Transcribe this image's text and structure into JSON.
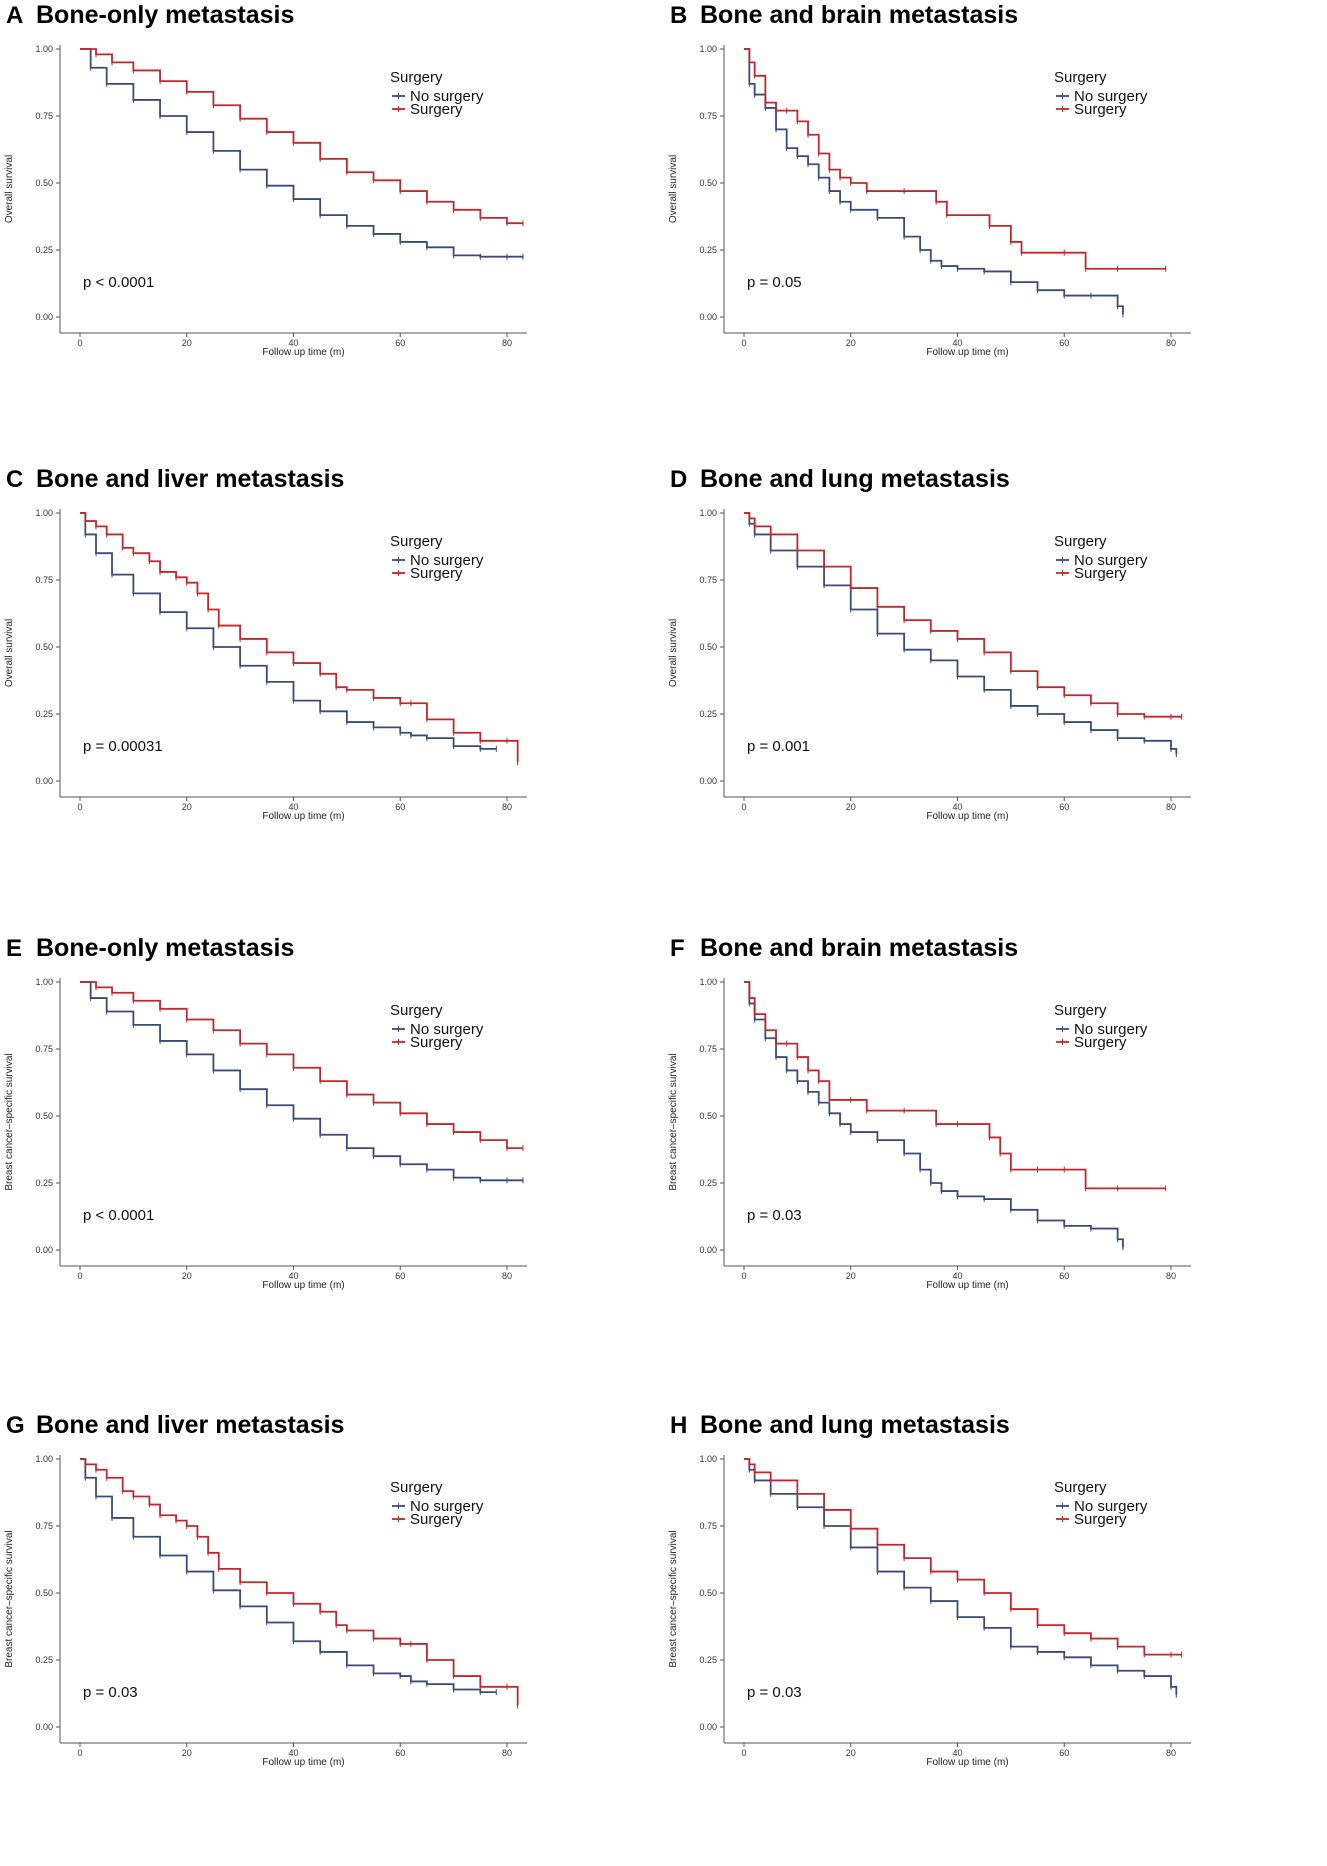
{
  "colors": {
    "no_surgery": "#3b4a7a",
    "surgery": "#c0282d",
    "axis": "#555555"
  },
  "chart_data": [
    {
      "type": "line",
      "letter": "A",
      "title": "Bone-only metastasis",
      "xlabel": "Follow up time (m)",
      "ylabel": "Overall survival",
      "xlim": [
        0,
        83
      ],
      "ylim": [
        0,
        1
      ],
      "xticks": [
        "0",
        "20",
        "40",
        "60",
        "80"
      ],
      "yticks": [
        "0.00",
        "0.25",
        "0.50",
        "0.75",
        "1.00"
      ],
      "legend_title": "Surgery",
      "pvalue": "p < 0.0001",
      "series": [
        {
          "name": "No surgery",
          "x": [
            0,
            2,
            5,
            10,
            15,
            20,
            25,
            30,
            35,
            40,
            45,
            50,
            55,
            60,
            65,
            70,
            75,
            80,
            83
          ],
          "values": [
            1.0,
            0.93,
            0.87,
            0.81,
            0.75,
            0.69,
            0.62,
            0.55,
            0.49,
            0.44,
            0.38,
            0.34,
            0.31,
            0.28,
            0.26,
            0.23,
            0.225,
            0.225,
            0.225
          ]
        },
        {
          "name": "Surgery",
          "x": [
            0,
            3,
            6,
            10,
            15,
            20,
            25,
            30,
            35,
            40,
            45,
            50,
            55,
            60,
            65,
            70,
            75,
            80,
            83
          ],
          "values": [
            1.0,
            0.98,
            0.95,
            0.92,
            0.88,
            0.84,
            0.79,
            0.74,
            0.69,
            0.65,
            0.59,
            0.54,
            0.51,
            0.47,
            0.43,
            0.4,
            0.37,
            0.35,
            0.35
          ]
        }
      ]
    },
    {
      "type": "line",
      "letter": "B",
      "title": "Bone and brain metastasis",
      "xlabel": "Follow up time (m)",
      "ylabel": "Overall survival",
      "xlim": [
        0,
        80
      ],
      "ylim": [
        0,
        1
      ],
      "xticks": [
        "0",
        "20",
        "40",
        "60",
        "80"
      ],
      "yticks": [
        "0.00",
        "0.25",
        "0.50",
        "0.75",
        "1.00"
      ],
      "legend_title": "Surgery",
      "pvalue": "p = 0.05",
      "series": [
        {
          "name": "No surgery",
          "x": [
            0,
            1,
            2,
            4,
            6,
            8,
            10,
            12,
            14,
            16,
            18,
            20,
            25,
            30,
            33,
            35,
            37,
            40,
            45,
            50,
            55,
            60,
            65,
            70,
            71
          ],
          "values": [
            1.0,
            0.87,
            0.83,
            0.78,
            0.7,
            0.63,
            0.6,
            0.57,
            0.52,
            0.47,
            0.43,
            0.4,
            0.37,
            0.3,
            0.25,
            0.21,
            0.19,
            0.18,
            0.17,
            0.13,
            0.1,
            0.08,
            0.08,
            0.04,
            0.01
          ]
        },
        {
          "name": "Surgery",
          "x": [
            0,
            1,
            2,
            4,
            6,
            8,
            10,
            12,
            14,
            16,
            18,
            20,
            23,
            30,
            36,
            38,
            46,
            50,
            52,
            60,
            64,
            70,
            79
          ],
          "values": [
            1.0,
            0.95,
            0.9,
            0.8,
            0.77,
            0.77,
            0.73,
            0.68,
            0.61,
            0.55,
            0.52,
            0.5,
            0.47,
            0.47,
            0.43,
            0.38,
            0.34,
            0.28,
            0.24,
            0.24,
            0.18,
            0.18,
            0.18
          ]
        }
      ]
    },
    {
      "type": "line",
      "letter": "C",
      "title": "Bone and liver metastasis",
      "xlabel": "Follow up time (m)",
      "ylabel": "Overall survival",
      "xlim": [
        0,
        83
      ],
      "ylim": [
        0,
        1
      ],
      "xticks": [
        "0",
        "20",
        "40",
        "60",
        "80"
      ],
      "yticks": [
        "0.00",
        "0.25",
        "0.50",
        "0.75",
        "1.00"
      ],
      "legend_title": "Surgery",
      "pvalue": "p = 0.00031",
      "series": [
        {
          "name": "No surgery",
          "x": [
            0,
            1,
            3,
            6,
            10,
            15,
            20,
            25,
            30,
            35,
            40,
            45,
            50,
            55,
            60,
            62,
            65,
            70,
            75,
            78
          ],
          "values": [
            1.0,
            0.92,
            0.85,
            0.77,
            0.7,
            0.63,
            0.57,
            0.5,
            0.43,
            0.37,
            0.3,
            0.26,
            0.22,
            0.2,
            0.18,
            0.17,
            0.16,
            0.13,
            0.12,
            0.12
          ]
        },
        {
          "name": "Surgery",
          "x": [
            0,
            1,
            3,
            5,
            8,
            10,
            13,
            15,
            18,
            20,
            22,
            24,
            26,
            30,
            35,
            40,
            45,
            48,
            50,
            55,
            60,
            62,
            65,
            70,
            75,
            80,
            82
          ],
          "values": [
            1.0,
            0.97,
            0.95,
            0.92,
            0.87,
            0.85,
            0.82,
            0.78,
            0.76,
            0.74,
            0.7,
            0.64,
            0.58,
            0.53,
            0.48,
            0.44,
            0.4,
            0.35,
            0.34,
            0.31,
            0.29,
            0.29,
            0.23,
            0.18,
            0.15,
            0.15,
            0.07
          ]
        }
      ]
    },
    {
      "type": "line",
      "letter": "D",
      "title": "Bone and lung metastasis",
      "xlabel": "Follow up time (m)",
      "ylabel": "Overall survival",
      "xlim": [
        0,
        82
      ],
      "ylim": [
        0,
        1
      ],
      "xticks": [
        "0",
        "20",
        "40",
        "60",
        "80"
      ],
      "yticks": [
        "0.00",
        "0.25",
        "0.50",
        "0.75",
        "1.00"
      ],
      "legend_title": "Surgery",
      "pvalue": "p = 0.001",
      "series": [
        {
          "name": "No surgery",
          "x": [
            0,
            1,
            2,
            5,
            10,
            15,
            20,
            25,
            30,
            35,
            40,
            45,
            50,
            55,
            60,
            65,
            70,
            75,
            80,
            81
          ],
          "values": [
            1.0,
            0.96,
            0.92,
            0.86,
            0.8,
            0.73,
            0.64,
            0.55,
            0.49,
            0.45,
            0.39,
            0.34,
            0.28,
            0.25,
            0.22,
            0.19,
            0.16,
            0.15,
            0.12,
            0.1
          ]
        },
        {
          "name": "Surgery",
          "x": [
            0,
            1,
            2,
            5,
            10,
            15,
            20,
            25,
            30,
            35,
            40,
            45,
            50,
            55,
            60,
            65,
            70,
            75,
            80,
            82
          ],
          "values": [
            1.0,
            0.98,
            0.95,
            0.92,
            0.86,
            0.8,
            0.72,
            0.65,
            0.6,
            0.56,
            0.53,
            0.48,
            0.41,
            0.35,
            0.32,
            0.29,
            0.25,
            0.24,
            0.24,
            0.24
          ]
        }
      ]
    },
    {
      "type": "line",
      "letter": "E",
      "title": "Bone-only metastasis",
      "xlabel": "Follow up time (m)",
      "ylabel": "Breast cancer–specific survival",
      "xlim": [
        0,
        83
      ],
      "ylim": [
        0,
        1
      ],
      "xticks": [
        "0",
        "20",
        "40",
        "60",
        "80"
      ],
      "yticks": [
        "0.00",
        "0.25",
        "0.50",
        "0.75",
        "1.00"
      ],
      "legend_title": "Surgery",
      "pvalue": "p < 0.0001",
      "series": [
        {
          "name": "No surgery",
          "x": [
            0,
            2,
            5,
            10,
            15,
            20,
            25,
            30,
            35,
            40,
            45,
            50,
            55,
            60,
            65,
            70,
            75,
            80,
            83
          ],
          "values": [
            1.0,
            0.94,
            0.89,
            0.84,
            0.78,
            0.73,
            0.67,
            0.6,
            0.54,
            0.49,
            0.43,
            0.38,
            0.35,
            0.32,
            0.3,
            0.27,
            0.26,
            0.26,
            0.26
          ]
        },
        {
          "name": "Surgery",
          "x": [
            0,
            3,
            6,
            10,
            15,
            20,
            25,
            30,
            35,
            40,
            45,
            50,
            55,
            60,
            65,
            70,
            75,
            80,
            83
          ],
          "values": [
            1.0,
            0.98,
            0.96,
            0.93,
            0.9,
            0.86,
            0.82,
            0.77,
            0.73,
            0.68,
            0.63,
            0.58,
            0.55,
            0.51,
            0.47,
            0.44,
            0.41,
            0.38,
            0.38
          ]
        }
      ]
    },
    {
      "type": "line",
      "letter": "F",
      "title": "Bone and brain metastasis",
      "xlabel": "Follow up time (m)",
      "ylabel": "Breast cancer–specific survival",
      "xlim": [
        0,
        80
      ],
      "ylim": [
        0,
        1
      ],
      "xticks": [
        "0",
        "20",
        "40",
        "60",
        "80"
      ],
      "yticks": [
        "0.00",
        "0.25",
        "0.50",
        "0.75",
        "1.00"
      ],
      "legend_title": "Surgery",
      "pvalue": "p = 0.03",
      "series": [
        {
          "name": "No surgery",
          "x": [
            0,
            1,
            2,
            4,
            6,
            8,
            10,
            12,
            14,
            16,
            18,
            20,
            25,
            30,
            33,
            35,
            37,
            40,
            45,
            50,
            55,
            60,
            65,
            70,
            71
          ],
          "values": [
            1.0,
            0.92,
            0.86,
            0.79,
            0.72,
            0.67,
            0.63,
            0.59,
            0.55,
            0.51,
            0.47,
            0.44,
            0.41,
            0.36,
            0.3,
            0.25,
            0.22,
            0.2,
            0.19,
            0.15,
            0.11,
            0.09,
            0.08,
            0.04,
            0.01
          ]
        },
        {
          "name": "Surgery",
          "x": [
            0,
            1,
            2,
            4,
            6,
            8,
            10,
            12,
            14,
            16,
            20,
            23,
            30,
            36,
            40,
            46,
            48,
            50,
            55,
            60,
            64,
            70,
            79
          ],
          "values": [
            1.0,
            0.94,
            0.88,
            0.82,
            0.77,
            0.77,
            0.72,
            0.67,
            0.63,
            0.56,
            0.56,
            0.52,
            0.52,
            0.47,
            0.47,
            0.42,
            0.36,
            0.3,
            0.3,
            0.3,
            0.23,
            0.23,
            0.23
          ]
        }
      ]
    },
    {
      "type": "line",
      "letter": "G",
      "title": "Bone and liver metastasis",
      "xlabel": "Follow up time (m)",
      "ylabel": "Breast cancer–specific survival",
      "xlim": [
        0,
        83
      ],
      "ylim": [
        0,
        1
      ],
      "xticks": [
        "0",
        "20",
        "40",
        "60",
        "80"
      ],
      "yticks": [
        "0.00",
        "0.25",
        "0.50",
        "0.75",
        "1.00"
      ],
      "legend_title": "Surgery",
      "pvalue": "p = 0.03",
      "series": [
        {
          "name": "No surgery",
          "x": [
            0,
            1,
            3,
            6,
            10,
            15,
            20,
            25,
            30,
            35,
            40,
            45,
            50,
            55,
            60,
            62,
            65,
            70,
            75,
            78
          ],
          "values": [
            1.0,
            0.93,
            0.86,
            0.78,
            0.71,
            0.64,
            0.58,
            0.51,
            0.45,
            0.39,
            0.32,
            0.28,
            0.23,
            0.2,
            0.19,
            0.17,
            0.16,
            0.14,
            0.13,
            0.13
          ]
        },
        {
          "name": "Surgery",
          "x": [
            0,
            1,
            3,
            5,
            8,
            10,
            13,
            15,
            18,
            20,
            22,
            24,
            26,
            30,
            35,
            40,
            45,
            48,
            50,
            55,
            60,
            62,
            65,
            70,
            75,
            80,
            82
          ],
          "values": [
            1.0,
            0.98,
            0.96,
            0.93,
            0.88,
            0.86,
            0.83,
            0.79,
            0.77,
            0.75,
            0.71,
            0.65,
            0.59,
            0.54,
            0.5,
            0.46,
            0.43,
            0.38,
            0.36,
            0.33,
            0.31,
            0.31,
            0.25,
            0.19,
            0.15,
            0.15,
            0.08
          ]
        }
      ]
    },
    {
      "type": "line",
      "letter": "H",
      "title": "Bone and lung metastasis",
      "xlabel": "Follow up time (m)",
      "ylabel": "Breast cancer–specific survival",
      "xlim": [
        0,
        82
      ],
      "ylim": [
        0,
        1
      ],
      "xticks": [
        "0",
        "20",
        "40",
        "60",
        "80"
      ],
      "yticks": [
        "0.00",
        "0.25",
        "0.50",
        "0.75",
        "1.00"
      ],
      "legend_title": "Surgery",
      "pvalue": "p = 0.03",
      "series": [
        {
          "name": "No surgery",
          "x": [
            0,
            1,
            2,
            5,
            10,
            15,
            20,
            25,
            30,
            35,
            40,
            45,
            50,
            55,
            60,
            65,
            70,
            75,
            80,
            81
          ],
          "values": [
            1.0,
            0.96,
            0.92,
            0.87,
            0.82,
            0.75,
            0.67,
            0.58,
            0.52,
            0.47,
            0.41,
            0.37,
            0.3,
            0.28,
            0.26,
            0.23,
            0.21,
            0.19,
            0.15,
            0.12
          ]
        },
        {
          "name": "Surgery",
          "x": [
            0,
            1,
            2,
            5,
            10,
            15,
            20,
            25,
            30,
            35,
            40,
            45,
            50,
            55,
            60,
            65,
            70,
            75,
            80,
            82
          ],
          "values": [
            1.0,
            0.98,
            0.95,
            0.92,
            0.87,
            0.81,
            0.74,
            0.68,
            0.63,
            0.58,
            0.55,
            0.5,
            0.44,
            0.38,
            0.35,
            0.33,
            0.3,
            0.27,
            0.27,
            0.27
          ]
        }
      ]
    }
  ]
}
